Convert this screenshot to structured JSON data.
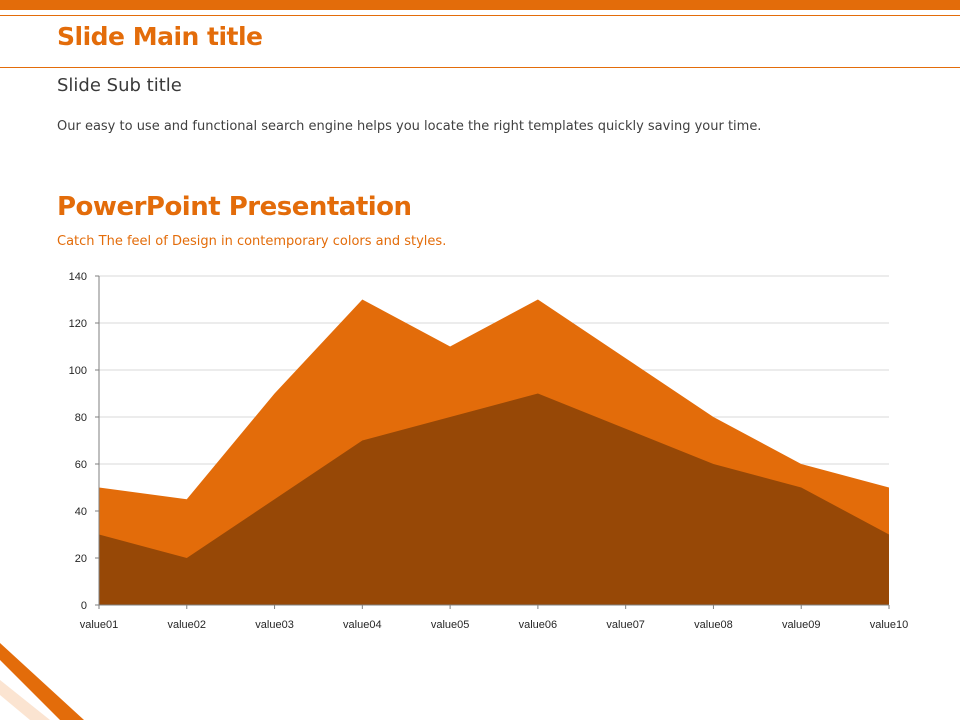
{
  "header": {
    "main_title": "Slide Main title",
    "sub_title": "Slide Sub title",
    "body_text": "Our easy to use and functional search engine helps you locate the right templates quickly saving your time."
  },
  "section": {
    "title": "PowerPoint Presentation",
    "subtitle": "Catch The feel of Design in contemporary colors and styles."
  },
  "colors": {
    "accent": "#e36c0a",
    "series_back": "#e36c0a",
    "series_front": "#974806"
  },
  "chart_data": {
    "type": "area",
    "categories": [
      "value01",
      "value02",
      "value03",
      "value04",
      "value05",
      "value06",
      "value07",
      "value08",
      "value09",
      "value10"
    ],
    "series": [
      {
        "values": [
          50,
          45,
          90,
          130,
          110,
          130,
          105,
          80,
          60,
          50
        ]
      },
      {
        "values": [
          30,
          20,
          45,
          70,
          80,
          90,
          75,
          60,
          50,
          30
        ]
      }
    ],
    "ylim": [
      0,
      140
    ],
    "yticks": [
      0,
      20,
      40,
      60,
      80,
      100,
      120,
      140
    ],
    "grid": true,
    "legend": "none"
  }
}
